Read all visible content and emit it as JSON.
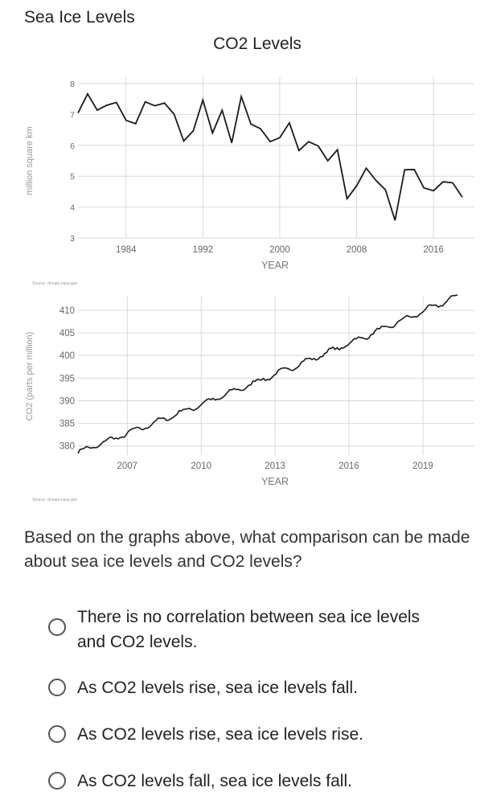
{
  "page": {
    "sea_title": "Sea Ice Levels",
    "co2_title": "CO2 Levels"
  },
  "chart_data": [
    {
      "type": "line",
      "title": "",
      "xlabel": "YEAR",
      "ylabel": "million square km",
      "source": "Source: climate.nasa.gov",
      "xlim": [
        1979,
        2019
      ],
      "ylim": [
        3,
        8
      ],
      "xticks": [
        1984,
        1992,
        2000,
        2008,
        2016
      ],
      "yticks": [
        3,
        4,
        5,
        6,
        7,
        8
      ],
      "grid": true,
      "color": "#1a1a1a",
      "series": [
        {
          "x": [
            1979,
            1980,
            1981,
            1982,
            1983,
            1984,
            1985,
            1986,
            1987,
            1988,
            1989,
            1990,
            1991,
            1992,
            1993,
            1994,
            1995,
            1996,
            1997,
            1998,
            1999,
            2000,
            2001,
            2002,
            2003,
            2004,
            2005,
            2006,
            2007,
            2008,
            2009,
            2010,
            2011,
            2012,
            2013,
            2014,
            2015,
            2016,
            2017,
            2018,
            2019
          ],
          "y": [
            7.05,
            7.67,
            7.14,
            7.3,
            7.39,
            6.81,
            6.7,
            7.41,
            7.28,
            7.37,
            7.01,
            6.14,
            6.47,
            7.47,
            6.4,
            7.14,
            6.08,
            7.58,
            6.69,
            6.54,
            6.12,
            6.25,
            6.73,
            5.83,
            6.12,
            5.98,
            5.5,
            5.86,
            4.27,
            4.69,
            5.26,
            4.87,
            4.56,
            3.57,
            5.21,
            5.22,
            4.62,
            4.53,
            4.82,
            4.79,
            4.32
          ]
        }
      ]
    },
    {
      "type": "line",
      "title": "",
      "xlabel": "YEAR",
      "ylabel": "CO2 (parts per million)",
      "source": "Source: climate.nasa.gov",
      "xlim": [
        2005,
        2020.6
      ],
      "ylim": [
        378,
        413
      ],
      "xticks": [
        2007,
        2010,
        2013,
        2016,
        2019
      ],
      "yticks": [
        380,
        385,
        390,
        395,
        400,
        405,
        410
      ],
      "grid": true,
      "color": "#1a1a1a",
      "trend": {
        "start_year": 2005.0,
        "end_year": 2020.4,
        "start_ppm": 378.6,
        "end_ppm": 413.1,
        "curvature": 0.08,
        "samples": 180
      }
    }
  ],
  "question": {
    "text": "Based on the graphs above, what comparison can be made about sea ice levels and CO2 levels?",
    "options": [
      "There is no correlation between sea ice levels and CO2 levels.",
      "As CO2 levels rise, sea ice levels fall.",
      "As CO2 levels rise, sea ice levels rise.",
      "As CO2 levels fall, sea ice levels fall."
    ]
  }
}
